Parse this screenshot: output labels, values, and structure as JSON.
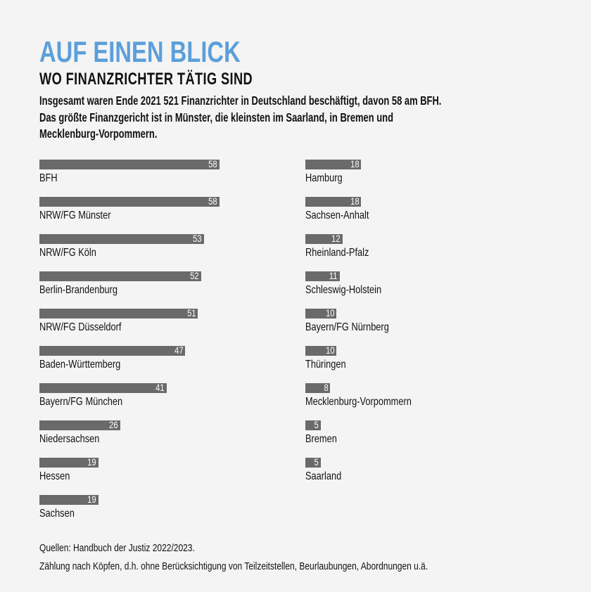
{
  "chart_data": {
    "type": "bar",
    "orientation": "horizontal",
    "title": "AUF EINEN BLICK",
    "subtitle": "WO FINANZRICHTER TÄTIG SIND",
    "intro": [
      "Insgesamt waren Ende 2021 521 Finanzrichter in Deutschland beschäftigt, davon 58 am BFH.",
      "Das größte Finanzgericht ist in Münster, die kleinsten im Saarland, in Bremen und",
      "Mecklenburg-Vorpommern."
    ],
    "categories": [
      "BFH",
      "NRW/FG Münster",
      "NRW/FG Köln",
      "Berlin-Brandenburg",
      "NRW/FG Düsseldorf",
      "Baden-Württemberg",
      "Bayern/FG München",
      "Niedersachsen",
      "Hessen",
      "Sachsen",
      "Hamburg",
      "Sachsen-Anhalt",
      "Rheinland-Pfalz",
      "Schleswig-Holstein",
      "Bayern/FG Nürnberg",
      "Thüringen",
      "Mecklenburg-Vorpommern",
      "Bremen",
      "Saarland"
    ],
    "values": [
      58,
      58,
      53,
      52,
      51,
      47,
      41,
      26,
      19,
      19,
      18,
      18,
      12,
      11,
      10,
      10,
      8,
      5,
      5
    ],
    "bar_color": "#6a6a6a",
    "title_color": "#5b9fda",
    "xlim": [
      0,
      58
    ],
    "footnotes": [
      "Quellen: Handbuch der Justiz 2022/2023.",
      "Zählung nach Köpfen, d.h. ohne Berücksichtigung von Teilzeitstellen, Beurlaubungen, Abordnungen u.ä."
    ]
  }
}
